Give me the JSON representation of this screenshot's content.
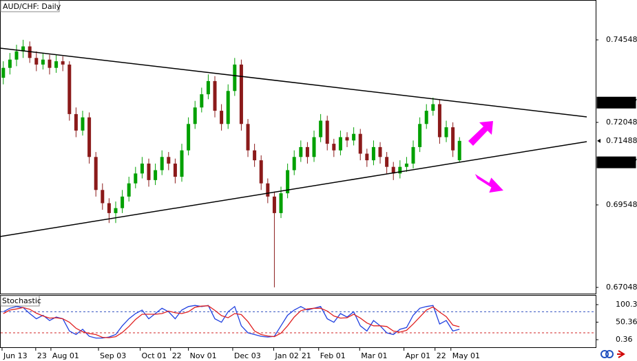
{
  "chart_data": {
    "type": "candlestick",
    "title": "AUD/CHF: Daily",
    "up_color": "#00a000",
    "down_color": "#8b1a1a",
    "xlim": [
      -0.5,
      89.6
    ],
    "ylim": [
      0.6686,
      0.75756
    ],
    "yticks": [
      0.74548,
      0.72048,
      0.69548,
      0.67048
    ],
    "xticks": [
      {
        "value": -0.19,
        "label": "Jun 13"
      },
      {
        "value": 4.9,
        "label": "23"
      },
      {
        "value": 7.2,
        "label": "Aug 01"
      },
      {
        "value": 14.4,
        "label": "Sep 03"
      },
      {
        "value": 20.7,
        "label": "Oct 01"
      },
      {
        "value": 25.3,
        "label": "22"
      },
      {
        "value": 28.0,
        "label": "Nov 01"
      },
      {
        "value": 34.7,
        "label": "Dec 03"
      },
      {
        "value": 40.9,
        "label": "Jan 02"
      },
      {
        "value": 44.9,
        "label": "21"
      },
      {
        "value": 47.7,
        "label": "Feb 01"
      },
      {
        "value": 53.9,
        "label": "Mar 01"
      },
      {
        "value": 60.6,
        "label": "Apr 01"
      },
      {
        "value": 65.3,
        "label": "22"
      },
      {
        "value": 67.7,
        "label": "May 01"
      }
    ],
    "price_labels": [
      {
        "value": 0.72647,
        "style": "dark"
      },
      {
        "value": 0.71488,
        "style": "current"
      },
      {
        "value": 0.70837,
        "style": "dark"
      }
    ],
    "trendlines": [
      {
        "x": [
          -0.5,
          88.25
        ],
        "y": [
          0.74298,
          0.72215
        ]
      },
      {
        "x": [
          -0.5,
          88.25
        ],
        "y": [
          0.6859,
          0.71465
        ]
      }
    ],
    "candles": [
      [
        0.734,
        0.739,
        0.732,
        0.737
      ],
      [
        0.737,
        0.7415,
        0.735,
        0.7395
      ],
      [
        0.7395,
        0.744,
        0.7375,
        0.742
      ],
      [
        0.742,
        0.7455,
        0.74,
        0.7435
      ],
      [
        0.7435,
        0.745,
        0.7385,
        0.74
      ],
      [
        0.74,
        0.742,
        0.736,
        0.738
      ],
      [
        0.738,
        0.7415,
        0.7365,
        0.7395
      ],
      [
        0.7395,
        0.741,
        0.735,
        0.737
      ],
      [
        0.737,
        0.741,
        0.7355,
        0.739
      ],
      [
        0.739,
        0.7405,
        0.736,
        0.738
      ],
      [
        0.738,
        0.739,
        0.721,
        0.723
      ],
      [
        0.723,
        0.725,
        0.716,
        0.718
      ],
      [
        0.718,
        0.724,
        0.7165,
        0.722
      ],
      [
        0.722,
        0.7235,
        0.708,
        0.71
      ],
      [
        0.71,
        0.7115,
        0.698,
        0.7
      ],
      [
        0.7,
        0.702,
        0.694,
        0.696
      ],
      [
        0.696,
        0.6975,
        0.69,
        0.693
      ],
      [
        0.693,
        0.6965,
        0.69,
        0.6945
      ],
      [
        0.6945,
        0.7,
        0.693,
        0.698
      ],
      [
        0.698,
        0.704,
        0.6965,
        0.702
      ],
      [
        0.702,
        0.707,
        0.7005,
        0.705
      ],
      [
        0.705,
        0.71,
        0.7035,
        0.708
      ],
      [
        0.708,
        0.7095,
        0.701,
        0.703
      ],
      [
        0.703,
        0.708,
        0.7015,
        0.706
      ],
      [
        0.706,
        0.712,
        0.7045,
        0.71
      ],
      [
        0.71,
        0.7115,
        0.706,
        0.708
      ],
      [
        0.708,
        0.7095,
        0.702,
        0.704
      ],
      [
        0.704,
        0.714,
        0.7025,
        0.712
      ],
      [
        0.712,
        0.722,
        0.7105,
        0.72
      ],
      [
        0.72,
        0.727,
        0.7185,
        0.725
      ],
      [
        0.725,
        0.731,
        0.7235,
        0.729
      ],
      [
        0.729,
        0.735,
        0.7275,
        0.733
      ],
      [
        0.733,
        0.7345,
        0.722,
        0.724
      ],
      [
        0.724,
        0.726,
        0.718,
        0.72
      ],
      [
        0.72,
        0.732,
        0.7185,
        0.73
      ],
      [
        0.73,
        0.74,
        0.7285,
        0.738
      ],
      [
        0.738,
        0.7395,
        0.718,
        0.72
      ],
      [
        0.72,
        0.7215,
        0.71,
        0.712
      ],
      [
        0.712,
        0.714,
        0.707,
        0.709
      ],
      [
        0.709,
        0.7105,
        0.7,
        0.702
      ],
      [
        0.702,
        0.7035,
        0.696,
        0.698
      ],
      [
        0.698,
        0.6995,
        0.6705,
        0.693
      ],
      [
        0.693,
        0.701,
        0.6915,
        0.699
      ],
      [
        0.699,
        0.708,
        0.6975,
        0.706
      ],
      [
        0.706,
        0.712,
        0.7045,
        0.71
      ],
      [
        0.71,
        0.715,
        0.7085,
        0.713
      ],
      [
        0.713,
        0.7145,
        0.708,
        0.71
      ],
      [
        0.71,
        0.718,
        0.7085,
        0.716
      ],
      [
        0.716,
        0.723,
        0.7145,
        0.721
      ],
      [
        0.721,
        0.7225,
        0.712,
        0.714
      ],
      [
        0.714,
        0.7155,
        0.71,
        0.712
      ],
      [
        0.712,
        0.718,
        0.7105,
        0.716
      ],
      [
        0.716,
        0.7175,
        0.713,
        0.715
      ],
      [
        0.715,
        0.719,
        0.7135,
        0.717
      ],
      [
        0.717,
        0.7185,
        0.709,
        0.711
      ],
      [
        0.711,
        0.7125,
        0.707,
        0.709
      ],
      [
        0.709,
        0.715,
        0.7075,
        0.713
      ],
      [
        0.713,
        0.7145,
        0.708,
        0.71
      ],
      [
        0.71,
        0.7115,
        0.705,
        0.707
      ],
      [
        0.707,
        0.7085,
        0.703,
        0.705
      ],
      [
        0.705,
        0.709,
        0.7035,
        0.707
      ],
      [
        0.707,
        0.71,
        0.7055,
        0.708
      ],
      [
        0.708,
        0.715,
        0.7065,
        0.713
      ],
      [
        0.713,
        0.722,
        0.7115,
        0.72
      ],
      [
        0.72,
        0.726,
        0.7185,
        0.724
      ],
      [
        0.724,
        0.728,
        0.7225,
        0.726
      ],
      [
        0.726,
        0.7275,
        0.714,
        0.716
      ],
      [
        0.716,
        0.721,
        0.7145,
        0.719
      ],
      [
        0.719,
        0.7205,
        0.71,
        0.712
      ],
      [
        0.709,
        0.716,
        0.7085,
        0.71488
      ]
    ],
    "stochastic": {
      "title": "Stochastic",
      "ylim": [
        -21.2,
        125.9
      ],
      "yticks": [
        100.36,
        50.36,
        0.36
      ],
      "levels": [
        80,
        20
      ],
      "series": [
        {
          "color": "#2040e0",
          "values": [
            80,
            90,
            95,
            92,
            75,
            60,
            70,
            55,
            65,
            60,
            25,
            15,
            30,
            10,
            5,
            5,
            8,
            15,
            40,
            60,
            75,
            85,
            60,
            75,
            90,
            80,
            60,
            85,
            95,
            98,
            95,
            98,
            60,
            50,
            80,
            95,
            40,
            20,
            15,
            10,
            8,
            10,
            40,
            70,
            85,
            95,
            85,
            90,
            95,
            60,
            50,
            75,
            65,
            80,
            40,
            25,
            55,
            40,
            20,
            15,
            30,
            35,
            70,
            90,
            95,
            98,
            45,
            55,
            25,
            30
          ]
        },
        {
          "color": "#e02020",
          "values": [
            75,
            85,
            88,
            92,
            87,
            76,
            68,
            62,
            63,
            60,
            50,
            33,
            23,
            18,
            15,
            7,
            6,
            9,
            21,
            38,
            58,
            73,
            73,
            73,
            75,
            82,
            77,
            75,
            80,
            93,
            96,
            97,
            84,
            69,
            63,
            75,
            72,
            52,
            25,
            15,
            11,
            9,
            19,
            40,
            65,
            83,
            88,
            90,
            90,
            82,
            68,
            62,
            63,
            73,
            62,
            48,
            40,
            40,
            38,
            25,
            22,
            27,
            45,
            65,
            85,
            94,
            79,
            66,
            42,
            37
          ]
        }
      ]
    }
  }
}
